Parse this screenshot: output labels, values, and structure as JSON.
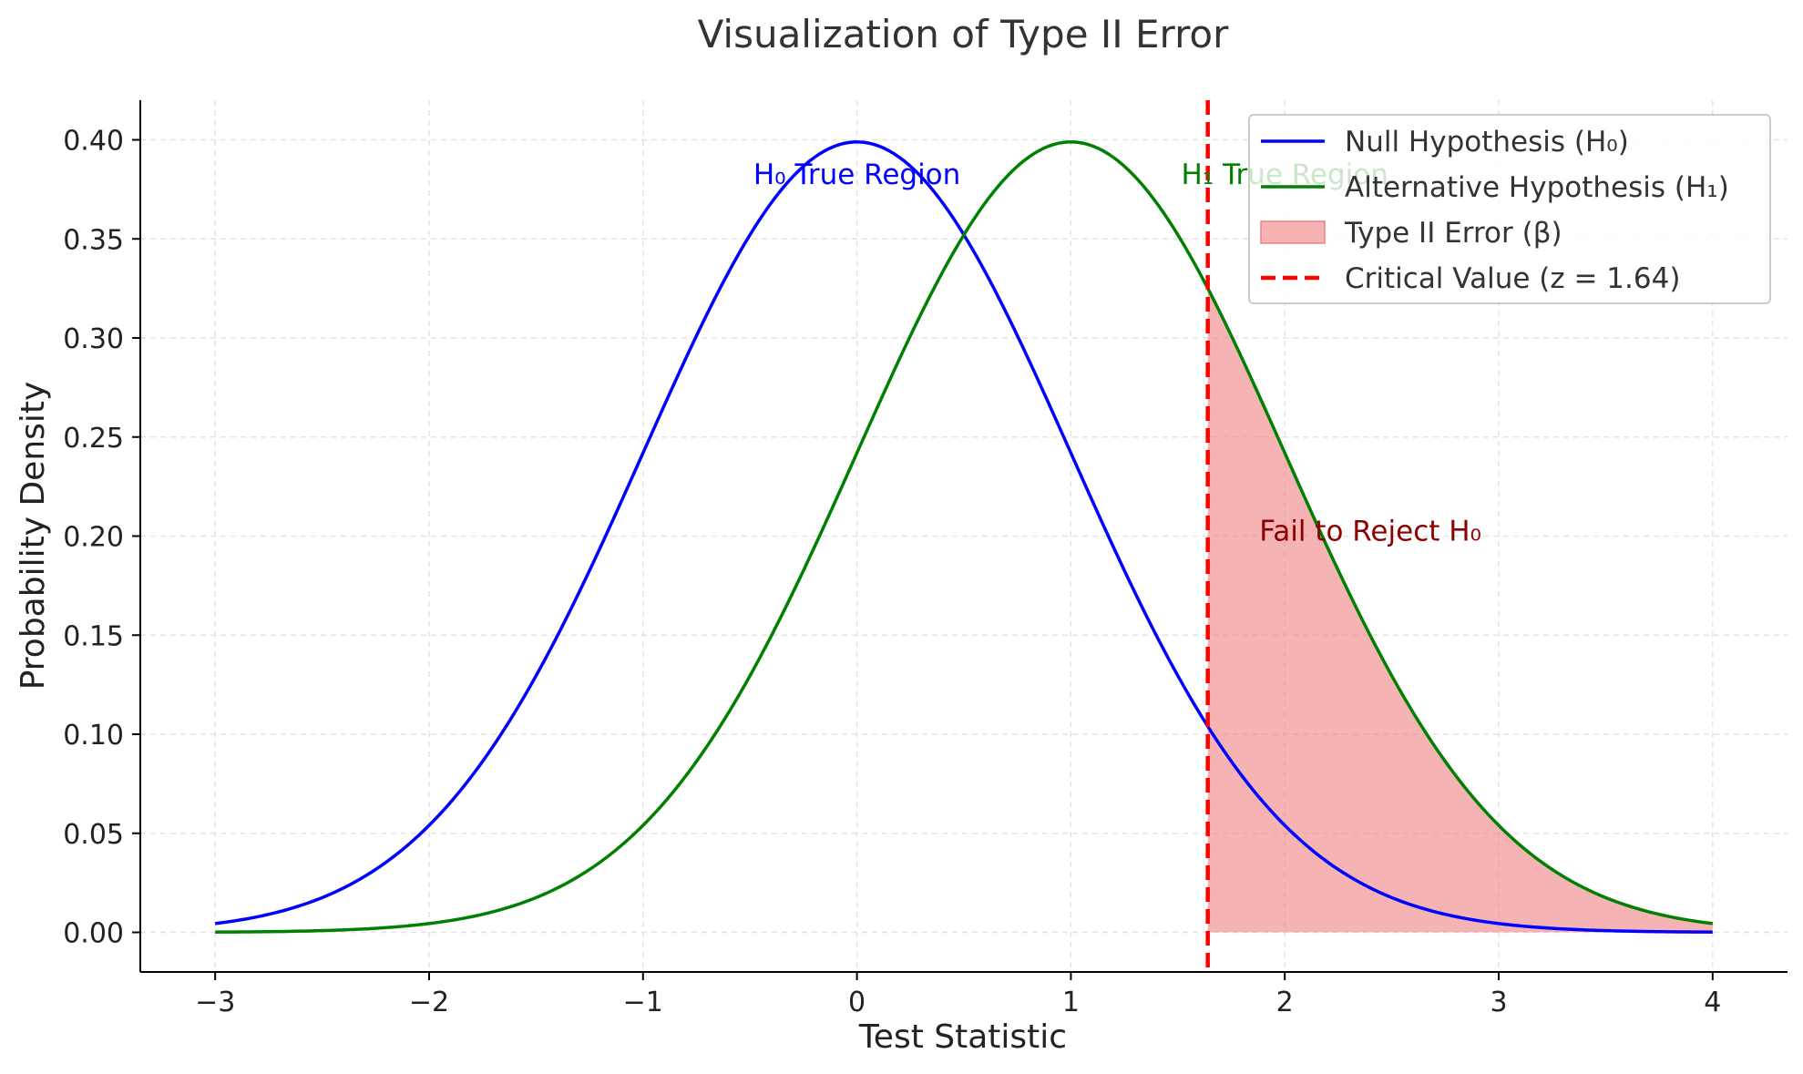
{
  "chart_data": {
    "type": "line",
    "title": "Visualization of Type II Error",
    "xlabel": "Test Statistic",
    "ylabel": "Probability Density",
    "xlim": [
      -3.35,
      4.35
    ],
    "ylim": [
      -0.02,
      0.42
    ],
    "x_ticks": [
      -3,
      -2,
      -1,
      0,
      1,
      2,
      3,
      4
    ],
    "x_tick_labels": [
      "−3",
      "−2",
      "−1",
      "0",
      "1",
      "2",
      "3",
      "4"
    ],
    "y_ticks": [
      0.0,
      0.05,
      0.1,
      0.15,
      0.2,
      0.25,
      0.3,
      0.35,
      0.4
    ],
    "y_tick_labels": [
      "0.00",
      "0.05",
      "0.10",
      "0.15",
      "0.20",
      "0.25",
      "0.30",
      "0.35",
      "0.40"
    ],
    "grid": true,
    "legend_position": "top-right",
    "series": [
      {
        "name": "Null Hypothesis (H₀)",
        "kind": "line",
        "color": "#0000ff",
        "x": [
          -3.0,
          -2.75,
          -2.5,
          -2.25,
          -2.0,
          -1.75,
          -1.5,
          -1.25,
          -1.0,
          -0.75,
          -0.5,
          -0.25,
          0.0,
          0.25,
          0.5,
          0.75,
          1.0,
          1.25,
          1.5,
          1.75,
          2.0,
          2.25,
          2.5,
          2.75,
          3.0,
          3.25,
          3.5,
          3.75,
          4.0
        ],
        "y": [
          0.0044,
          0.0091,
          0.0175,
          0.0317,
          0.054,
          0.0863,
          0.1295,
          0.1826,
          0.242,
          0.3011,
          0.3521,
          0.3867,
          0.3989,
          0.3867,
          0.3521,
          0.3011,
          0.242,
          0.1826,
          0.1295,
          0.0863,
          0.054,
          0.0317,
          0.0175,
          0.0091,
          0.0044,
          0.002,
          0.0009,
          0.0004,
          0.0001
        ]
      },
      {
        "name": "Alternative Hypothesis (H₁)",
        "kind": "line",
        "color": "#008000",
        "x": [
          -3.0,
          -2.75,
          -2.5,
          -2.25,
          -2.0,
          -1.75,
          -1.5,
          -1.25,
          -1.0,
          -0.75,
          -0.5,
          -0.25,
          0.0,
          0.25,
          0.5,
          0.75,
          1.0,
          1.25,
          1.5,
          1.75,
          2.0,
          2.25,
          2.5,
          2.75,
          3.0,
          3.25,
          3.5,
          3.75,
          4.0
        ],
        "y": [
          0.0001,
          0.0004,
          0.0009,
          0.002,
          0.0044,
          0.0091,
          0.0175,
          0.0317,
          0.054,
          0.0863,
          0.1295,
          0.1826,
          0.242,
          0.3011,
          0.3521,
          0.3867,
          0.3989,
          0.3867,
          0.3521,
          0.3011,
          0.242,
          0.1826,
          0.1295,
          0.0863,
          0.054,
          0.0317,
          0.0175,
          0.0091,
          0.0044
        ]
      },
      {
        "name": "Type II Error (β)",
        "kind": "area",
        "color": "#f08080",
        "x": [
          1.64,
          1.75,
          2.0,
          2.25,
          2.5,
          2.75,
          3.0,
          3.25,
          3.5,
          3.75,
          4.0
        ],
        "y": [
          0.3244,
          0.3011,
          0.242,
          0.1826,
          0.1295,
          0.0863,
          0.054,
          0.0317,
          0.0175,
          0.0091,
          0.0044
        ]
      },
      {
        "name": "Critical Value (z = 1.64)",
        "kind": "vline",
        "color": "#ff0000",
        "x": 1.64
      }
    ],
    "annotations": [
      {
        "text": "H₀ True Region",
        "x": 0.0,
        "y": 0.38,
        "color": "#0000ff"
      },
      {
        "text": "H₁ True Region",
        "x": 2.0,
        "y": 0.38,
        "color": "#008000"
      },
      {
        "text": "Fail to Reject H₀",
        "x": 2.4,
        "y": 0.2,
        "color": "#8b0000"
      }
    ]
  }
}
